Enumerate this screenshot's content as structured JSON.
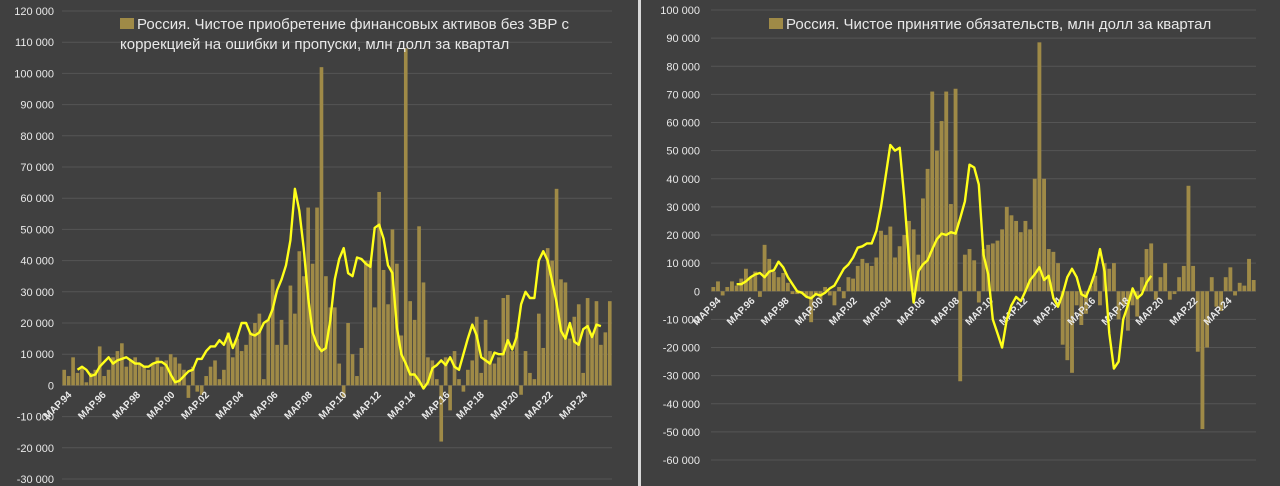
{
  "colors": {
    "background": "#404040",
    "bar": "#9f8a47",
    "line": "#ffff1a",
    "grid": "#555555",
    "text": "#e8e8e8"
  },
  "chart_data": [
    {
      "type": "bar",
      "title": "Россия. Чистое приобретение финансовых активов без ЗВР с коррекцией на ошибки и пропуски, млн долл за квартал",
      "series": [
        {
          "name": "Россия. Чистое приобретение финансовых активов без ЗВР с коррекцией на ошибки и пропуски, млн долл за квартал",
          "kind": "bar"
        },
        {
          "name": "",
          "kind": "line",
          "color": "#ffff1a"
        }
      ],
      "ylim": [
        -30000,
        120000
      ],
      "yticks": [
        "-30 000",
        "-20 000",
        "-10 000",
        "0",
        "10 000",
        "20 000",
        "30 000",
        "40 000",
        "50 000",
        "60 000",
        "70 000",
        "80 000",
        "90 000",
        "100 000",
        "110 000",
        "120 000"
      ],
      "xticks": [
        "MAP.94",
        "MAP.96",
        "MAP.98",
        "MAP.00",
        "MAP.02",
        "MAP.04",
        "MAP.06",
        "MAP.08",
        "MAP.10",
        "MAP.12",
        "MAP.14",
        "MAP.16",
        "MAP.18",
        "MAP.20",
        "MAP.22",
        "MAP.24"
      ],
      "grid": true,
      "legend": "top",
      "values": [
        5000,
        3000,
        9000,
        4000,
        6000,
        1000,
        4000,
        5000,
        12500,
        3000,
        5000,
        9000,
        11000,
        13500,
        6000,
        8000,
        9000,
        7000,
        6000,
        5000,
        7000,
        9000,
        6000,
        8000,
        10000,
        9000,
        7000,
        5000,
        -4000,
        6000,
        -2000,
        -3000,
        3000,
        6000,
        8000,
        2000,
        5000,
        17000,
        9000,
        15000,
        11000,
        13000,
        17000,
        20000,
        23000,
        2000,
        21000,
        34000,
        13000,
        21000,
        13000,
        32000,
        23000,
        43000,
        35000,
        57000,
        39000,
        57000,
        102000,
        35000,
        25000,
        25000,
        7000,
        -4000,
        20000,
        10000,
        3000,
        12000,
        40000,
        40000,
        25000,
        62000,
        37000,
        26000,
        50000,
        39000,
        16000,
        108000,
        27000,
        21000,
        51000,
        33000,
        9000,
        8000,
        2000,
        -18000,
        9000,
        -8000,
        11000,
        2000,
        -2000,
        5000,
        8000,
        22000,
        4000,
        21000,
        11000,
        7000,
        9000,
        28000,
        29000,
        11000,
        17000,
        -3000,
        11000,
        4000,
        2000,
        23000,
        12000,
        44000,
        40000,
        63000,
        34000,
        33000,
        15000,
        22000,
        26000,
        4000,
        28000,
        16000,
        27000,
        13000,
        17000,
        27000
      ],
      "line": [
        5000,
        6000,
        5000,
        3000,
        3500,
        6000,
        7500,
        9000,
        7000,
        8000,
        8500,
        9000,
        8000,
        7000,
        7000,
        6000,
        6000,
        7000,
        7500,
        7500,
        6500,
        3500,
        1000,
        1500,
        3000,
        4500,
        5000,
        8500,
        8500,
        11000,
        12500,
        12500,
        14500,
        13000,
        16500,
        12000,
        15500,
        20000,
        20000,
        16500,
        16000,
        17000,
        20000,
        21000,
        24500,
        30500,
        34000,
        38500,
        46500,
        63000,
        56000,
        44000,
        28000,
        17000,
        13000,
        11000,
        12000,
        21000,
        34000,
        40500,
        44000,
        36000,
        35000,
        41000,
        40500,
        39000,
        38000,
        50500,
        51500,
        47000,
        38500,
        36000,
        18500,
        10000,
        7000,
        3500,
        3500,
        1500,
        -1000,
        1000,
        5500,
        6500,
        8000,
        6500,
        9000,
        6000,
        5000,
        10000,
        15000,
        19500,
        16000,
        9000,
        8000,
        7000,
        10500,
        10000,
        10000,
        14500,
        11500,
        15500,
        26000,
        30000,
        28000,
        28000,
        40000,
        43000,
        40000,
        33500,
        26500,
        17500,
        15000,
        20000,
        14000,
        13000,
        18000,
        19000,
        15500,
        19500,
        19000
      ],
      "line_start": 3
    },
    {
      "type": "bar",
      "title": "Россия. Чистое принятие обязательств, млн долл за квартал",
      "series": [
        {
          "name": "Россия. Чистое принятие обязательств, млн долл за квартал",
          "kind": "bar"
        },
        {
          "name": "",
          "kind": "line",
          "color": "#ffff1a"
        }
      ],
      "ylim": [
        -60000,
        100000
      ],
      "yticks": [
        "-60 000",
        "-50 000",
        "-40 000",
        "-30 000",
        "-20 000",
        "-10 000",
        "0",
        "10 000",
        "20 000",
        "30 000",
        "40 000",
        "50 000",
        "60 000",
        "70 000",
        "80 000",
        "90 000",
        "100 000"
      ],
      "xticks": [
        "MAP.94",
        "MAP.96",
        "MAP.98",
        "MAP.00",
        "MAP.02",
        "MAP.04",
        "MAP.06",
        "MAP.08",
        "MAP.10",
        "MAP.12",
        "MAP.14",
        "MAP.16",
        "MAP.18",
        "MAP.20",
        "MAP.22",
        "MAP.24"
      ],
      "grid": true,
      "legend": "top",
      "values": [
        1500,
        3500,
        -1500,
        1500,
        3500,
        2000,
        4500,
        8000,
        5000,
        7000,
        -2000,
        16500,
        11500,
        7000,
        5000,
        6500,
        3000,
        -1000,
        -1000,
        -500,
        -2000,
        -11000,
        -1000,
        -3000,
        1500,
        -1500,
        -5000,
        1500,
        -2500,
        5000,
        4500,
        9000,
        11500,
        10000,
        9000,
        12000,
        21500,
        20000,
        23000,
        12000,
        16000,
        20000,
        25000,
        22000,
        13000,
        33000,
        43500,
        71000,
        50000,
        60500,
        71000,
        31000,
        72000,
        -32000,
        13000,
        15000,
        11000,
        -4000,
        15000,
        16500,
        17000,
        18000,
        22000,
        30000,
        27000,
        25000,
        21000,
        25000,
        22000,
        40000,
        88500,
        40000,
        15000,
        14000,
        10000,
        -19000,
        -24500,
        -29000,
        -5000,
        -12000,
        -8000,
        2000,
        5500,
        -5000,
        10000,
        8000,
        10000,
        -10000,
        -5000,
        -14000,
        -5000,
        -9000,
        5000,
        15000,
        17000,
        -3000,
        5000,
        10000,
        -3000,
        -1000,
        5000,
        9000,
        37500,
        9000,
        -21500,
        -49000,
        -20000,
        5000,
        -5500,
        -7000,
        5000,
        8500,
        -1500,
        3000,
        2000,
        11500,
        4000
      ],
      "line": [
        2500,
        2500,
        3500,
        5000,
        6000,
        6500,
        5000,
        7000,
        7500,
        10500,
        8500,
        5000,
        2500,
        0,
        -500,
        -2000,
        -2500,
        -1000,
        -1500,
        -500,
        1000,
        2000,
        5000,
        8000,
        9500,
        12000,
        15500,
        16000,
        17000,
        17000,
        21500,
        30000,
        41000,
        52000,
        50000,
        51000,
        33000,
        11000,
        -4000,
        7000,
        9500,
        11000,
        15000,
        18500,
        20500,
        20000,
        21000,
        20500,
        26000,
        32000,
        45000,
        44000,
        38000,
        13000,
        6000,
        -10000,
        -15000,
        -20000,
        -10000,
        -5000,
        -2000,
        -3500,
        0,
        4000,
        6000,
        8500,
        4000,
        5500,
        -2500,
        -5500,
        -1000,
        5000,
        8000,
        5000,
        -1000,
        -2000,
        2000,
        7000,
        15000,
        7000,
        -15000,
        -27500,
        -25000,
        -10000,
        -5000,
        1000,
        -2500,
        -1000,
        3000,
        5500
      ],
      "line_start": 5
    }
  ]
}
